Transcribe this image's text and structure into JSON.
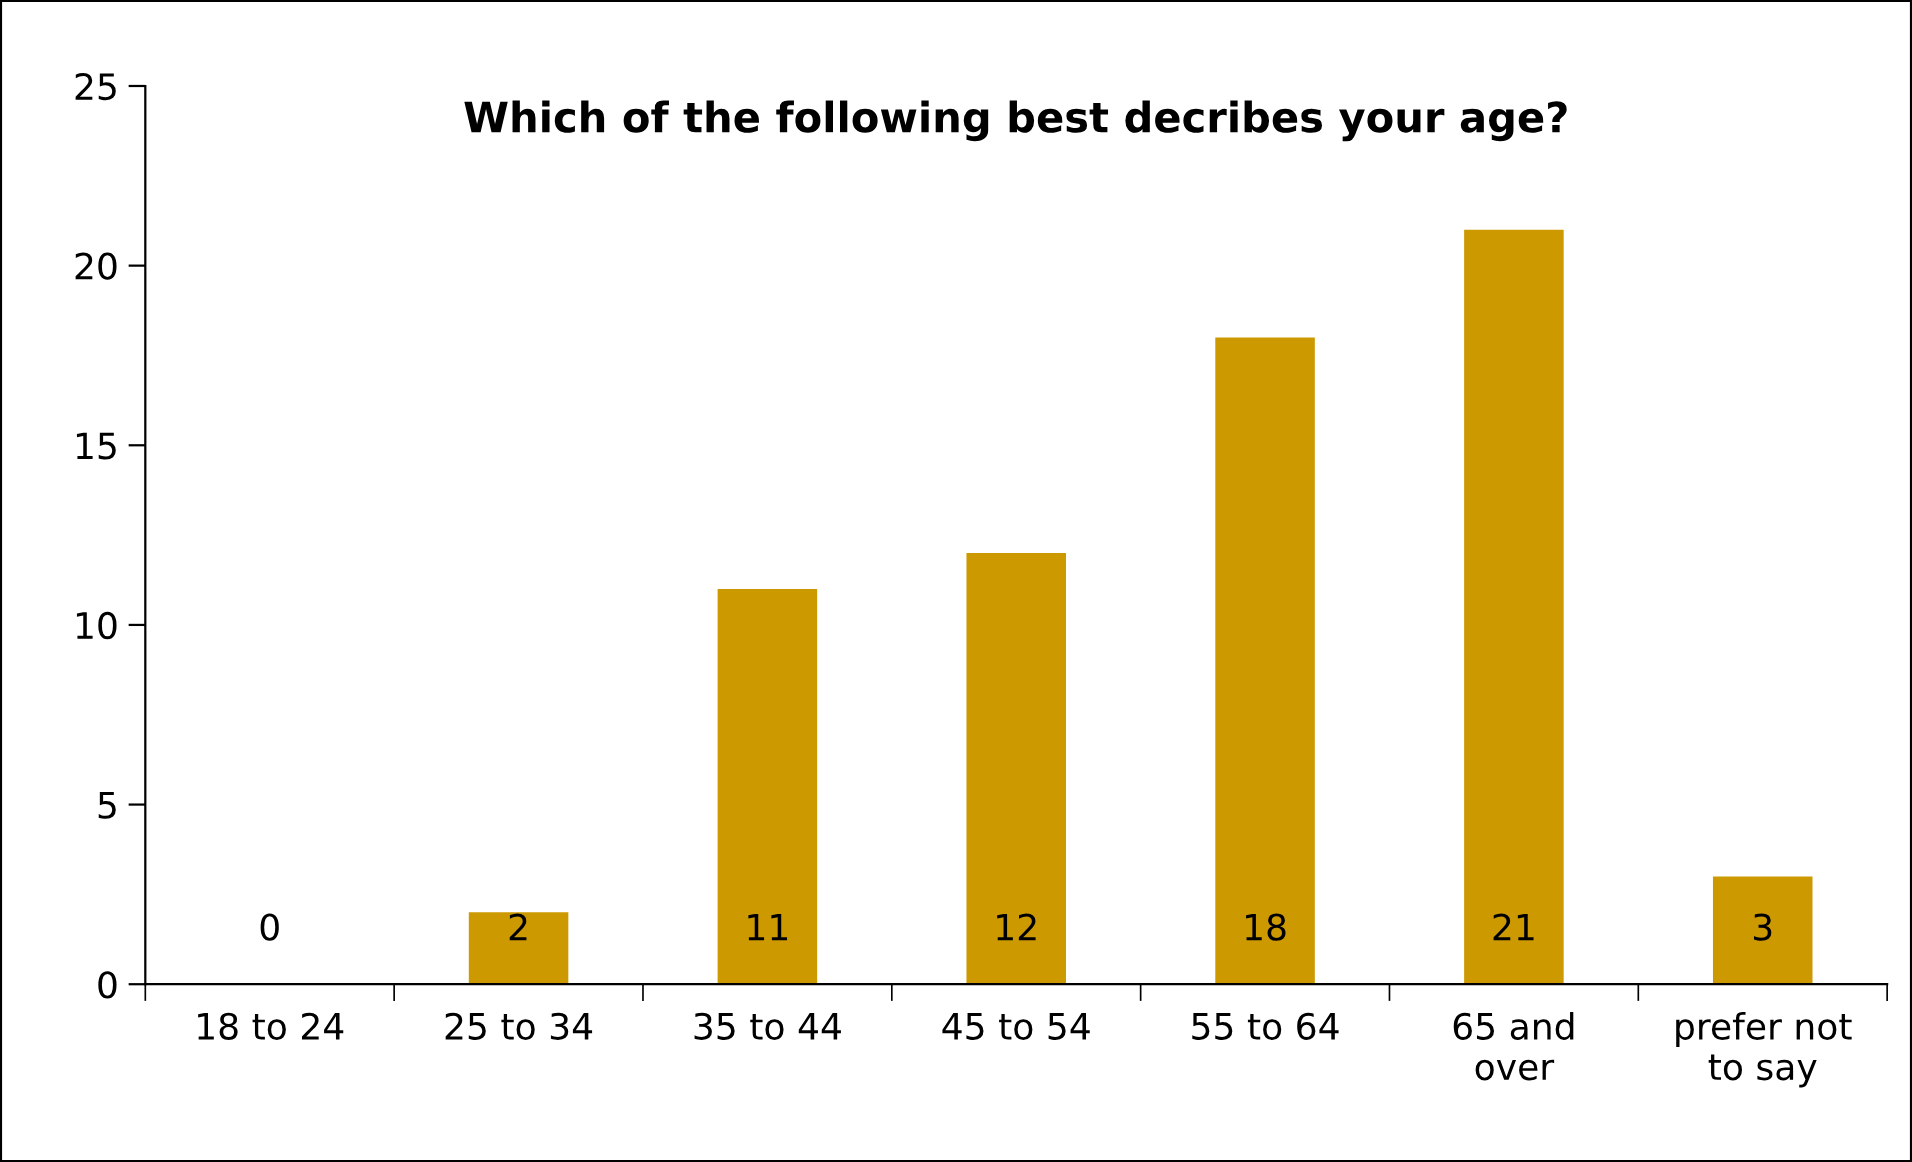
{
  "chart_data": {
    "type": "bar",
    "title": "Which of the following best decribes your age?",
    "categories": [
      "18 to 24",
      "25 to 34",
      "35 to 44",
      "45 to 54",
      "55 to 64",
      "65 and\nover",
      "prefer not\nto say"
    ],
    "values": [
      0,
      2,
      11,
      12,
      18,
      21,
      3
    ],
    "color": "#cc9900",
    "ylim": [
      0,
      25
    ],
    "yticks": [
      0,
      5,
      10,
      15,
      20,
      25
    ],
    "data_labels": true,
    "grid": false,
    "legend": false
  }
}
